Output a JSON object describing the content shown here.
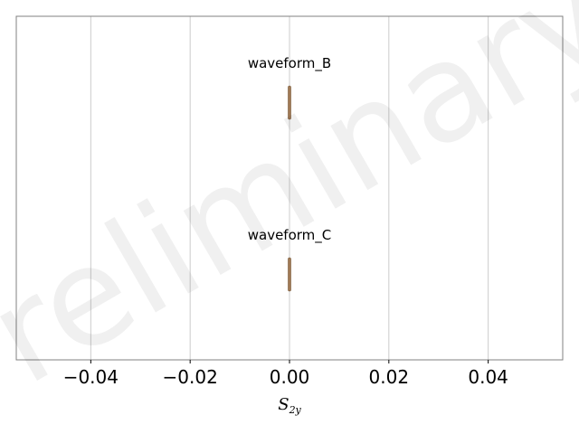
{
  "chart_data": {
    "type": "scatter",
    "title": "",
    "xlabel_main": "S",
    "xlabel_sub": "2y",
    "ylabel": "",
    "xlim": [
      -0.055,
      0.055
    ],
    "xticks": [
      -0.04,
      -0.02,
      0.0,
      0.02,
      0.04
    ],
    "xtick_labels": [
      "−0.04",
      "−0.02",
      "0.00",
      "0.02",
      "0.04"
    ],
    "grid": "vertical",
    "watermark": "Preliminary",
    "series": [
      {
        "name": "waveform_B",
        "values": [
          0.0
        ],
        "color": "#a07a55"
      },
      {
        "name": "waveform_C",
        "values": [
          0.0
        ],
        "color": "#a07a55"
      }
    ]
  }
}
